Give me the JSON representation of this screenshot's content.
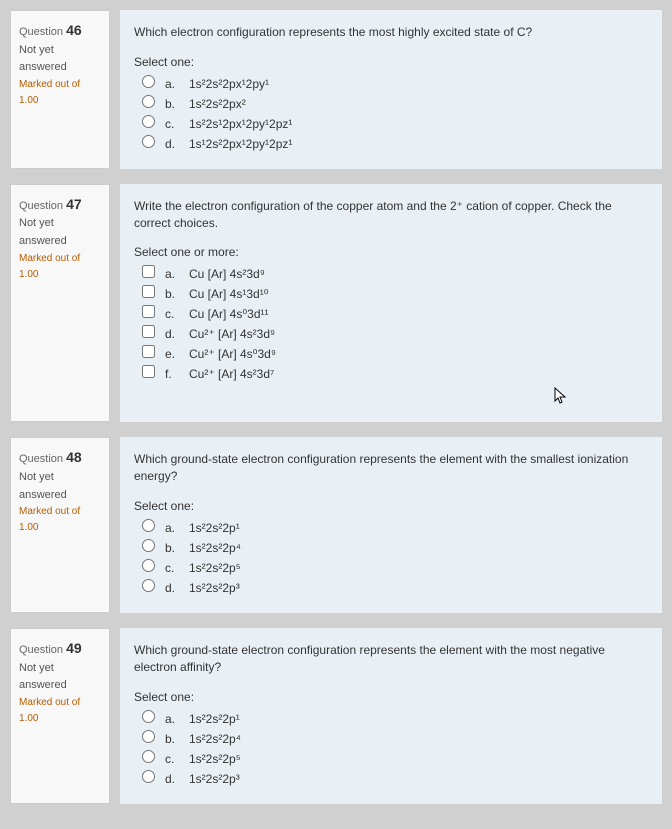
{
  "questions": [
    {
      "number": "46",
      "status": "Not yet answered",
      "marked": "Marked out of 1.00",
      "prompt": "Which electron configuration represents the most highly excited state of C?",
      "selectLabel": "Select one:",
      "inputType": "radio",
      "options": [
        {
          "letter": "a.",
          "text": "1s²2s²2px¹2py¹"
        },
        {
          "letter": "b.",
          "text": "1s²2s²2px²"
        },
        {
          "letter": "c.",
          "text": "1s²2s¹2px¹2py¹2pz¹"
        },
        {
          "letter": "d.",
          "text": "1s¹2s²2px¹2py¹2pz¹"
        }
      ]
    },
    {
      "number": "47",
      "status": "Not yet answered",
      "marked": "Marked out of 1.00",
      "prompt": "Write the electron configuration of the copper atom and the 2⁺ cation of copper. Check the correct choices.",
      "selectLabel": "Select one or more:",
      "inputType": "checkbox",
      "options": [
        {
          "letter": "a.",
          "text": "Cu [Ar] 4s²3d⁹"
        },
        {
          "letter": "b.",
          "text": "Cu [Ar] 4s¹3d¹⁰"
        },
        {
          "letter": "c.",
          "text": "Cu [Ar] 4s⁰3d¹¹"
        },
        {
          "letter": "d.",
          "text": "Cu²⁺ [Ar] 4s²3d⁹"
        },
        {
          "letter": "e.",
          "text": "Cu²⁺ [Ar] 4s⁰3d⁹"
        },
        {
          "letter": "f.",
          "text": "Cu²⁺ [Ar] 4s²3d⁷"
        }
      ],
      "hasCursor": true
    },
    {
      "number": "48",
      "status": "Not yet answered",
      "marked": "Marked out of 1.00",
      "prompt": "Which ground-state electron configuration represents the element with the smallest ionization energy?",
      "selectLabel": "Select one:",
      "inputType": "radio",
      "options": [
        {
          "letter": "a.",
          "text": "1s²2s²2p¹"
        },
        {
          "letter": "b.",
          "text": "1s²2s²2p⁴"
        },
        {
          "letter": "c.",
          "text": "1s²2s²2p⁵"
        },
        {
          "letter": "d.",
          "text": "1s²2s²2p³"
        }
      ]
    },
    {
      "number": "49",
      "status": "Not yet answered",
      "marked": "Marked out of 1.00",
      "prompt": "Which ground-state electron configuration represents the element with the most negative electron affinity?",
      "selectLabel": "Select one:",
      "inputType": "radio",
      "options": [
        {
          "letter": "a.",
          "text": "1s²2s²2p¹"
        },
        {
          "letter": "b.",
          "text": "1s²2s²2p⁴"
        },
        {
          "letter": "c.",
          "text": "1s²2s²2p⁵"
        },
        {
          "letter": "d.",
          "text": "1s²2s²2p³"
        }
      ]
    }
  ],
  "labels": {
    "questionPrefix": "Question"
  },
  "colors": {
    "pageBg": "#d0d0d0",
    "infoBg": "#f8f8f8",
    "bodyBg": "#e8f0f5",
    "border": "#cccccc",
    "text": "#333333",
    "marked": "#b85c00"
  }
}
